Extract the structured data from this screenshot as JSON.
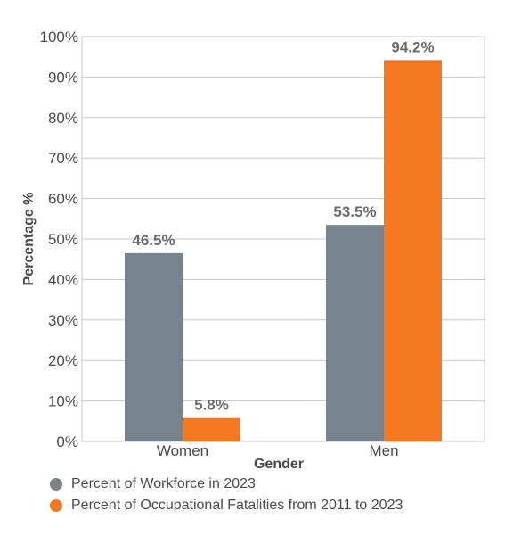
{
  "chart_data": {
    "type": "bar",
    "categories": [
      "Women",
      "Men"
    ],
    "series": [
      {
        "name": "Percent of Workforce in 2023",
        "values": [
          46.5,
          53.5
        ],
        "color": "#77848e"
      },
      {
        "name": "Percent of Occupational Fatalities from 2011 to 2023",
        "values": [
          5.8,
          94.2
        ],
        "color": "#f47721"
      }
    ],
    "data_labels": [
      [
        "46.5%",
        "53.5%"
      ],
      [
        "5.8%",
        "94.2%"
      ]
    ],
    "xlabel": "Gender",
    "ylabel": "Percentage %",
    "ylim": [
      0,
      100
    ],
    "yticks": [
      0,
      10,
      20,
      30,
      40,
      50,
      60,
      70,
      80,
      90,
      100
    ],
    "ytick_labels": [
      "0%",
      "10%",
      "20%",
      "30%",
      "40%",
      "50%",
      "60%",
      "70%",
      "80%",
      "90%",
      "100%"
    ],
    "grid": true,
    "legend_position": "bottom-left"
  }
}
